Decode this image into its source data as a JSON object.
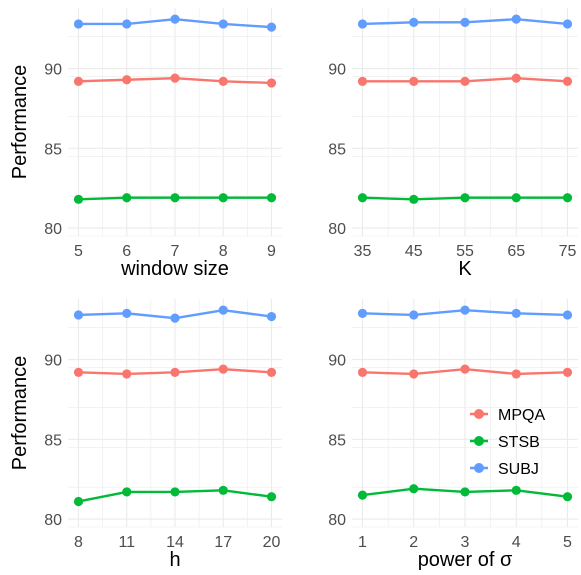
{
  "colors": {
    "MPQA": "#F8766D",
    "STSB": "#00BA38",
    "SUBJ": "#619CFF",
    "grid": "#EBEBEB",
    "tick_text": "#4D4D4D"
  },
  "legend": {
    "placement": "inside bottom-right of lower-right panel",
    "entries": [
      "MPQA",
      "STSB",
      "SUBJ"
    ]
  },
  "chart_data": [
    {
      "type": "line",
      "xlabel": "window size",
      "ylabel": "Performance",
      "x": [
        5,
        6,
        7,
        8,
        9
      ],
      "x_tick_labels": [
        "5",
        "6",
        "7",
        "8",
        "9"
      ],
      "ylim": [
        79.5,
        93.8
      ],
      "y_ticks": [
        80,
        85,
        90
      ],
      "grid": true,
      "series": [
        {
          "name": "MPQA",
          "values": [
            89.2,
            89.3,
            89.4,
            89.2,
            89.1
          ]
        },
        {
          "name": "STSB",
          "values": [
            81.8,
            81.9,
            81.9,
            81.9,
            81.9
          ]
        },
        {
          "name": "SUBJ",
          "values": [
            92.8,
            92.8,
            93.1,
            92.8,
            92.6
          ]
        }
      ]
    },
    {
      "type": "line",
      "xlabel": "K",
      "ylabel": "",
      "x": [
        35,
        45,
        55,
        65,
        75
      ],
      "x_tick_labels": [
        "35",
        "45",
        "55",
        "65",
        "75"
      ],
      "ylim": [
        79.5,
        93.8
      ],
      "y_ticks": [
        80,
        85,
        90
      ],
      "grid": true,
      "series": [
        {
          "name": "MPQA",
          "values": [
            89.2,
            89.2,
            89.2,
            89.4,
            89.2
          ]
        },
        {
          "name": "STSB",
          "values": [
            81.9,
            81.8,
            81.9,
            81.9,
            81.9
          ]
        },
        {
          "name": "SUBJ",
          "values": [
            92.8,
            92.9,
            92.9,
            93.1,
            92.8
          ]
        }
      ]
    },
    {
      "type": "line",
      "xlabel": "h",
      "ylabel": "Performance",
      "x": [
        8,
        11,
        14,
        17,
        20
      ],
      "x_tick_labels": [
        "8",
        "11",
        "14",
        "17",
        "20"
      ],
      "ylim": [
        79.5,
        93.8
      ],
      "y_ticks": [
        80,
        85,
        90
      ],
      "grid": true,
      "series": [
        {
          "name": "MPQA",
          "values": [
            89.2,
            89.1,
            89.2,
            89.4,
            89.2
          ]
        },
        {
          "name": "STSB",
          "values": [
            81.1,
            81.7,
            81.7,
            81.8,
            81.4
          ]
        },
        {
          "name": "SUBJ",
          "values": [
            92.8,
            92.9,
            92.6,
            93.1,
            92.7
          ]
        }
      ]
    },
    {
      "type": "line",
      "xlabel": "power of σ",
      "ylabel": "",
      "x": [
        1,
        2,
        3,
        4,
        5
      ],
      "x_tick_labels": [
        "1",
        "2",
        "3",
        "4",
        "5"
      ],
      "ylim": [
        79.5,
        93.8
      ],
      "y_ticks": [
        80,
        85,
        90
      ],
      "grid": true,
      "series": [
        {
          "name": "MPQA",
          "values": [
            89.2,
            89.1,
            89.4,
            89.1,
            89.2
          ]
        },
        {
          "name": "STSB",
          "values": [
            81.5,
            81.9,
            81.7,
            81.8,
            81.4
          ]
        },
        {
          "name": "SUBJ",
          "values": [
            92.9,
            92.8,
            93.1,
            92.9,
            92.8
          ]
        }
      ]
    }
  ]
}
